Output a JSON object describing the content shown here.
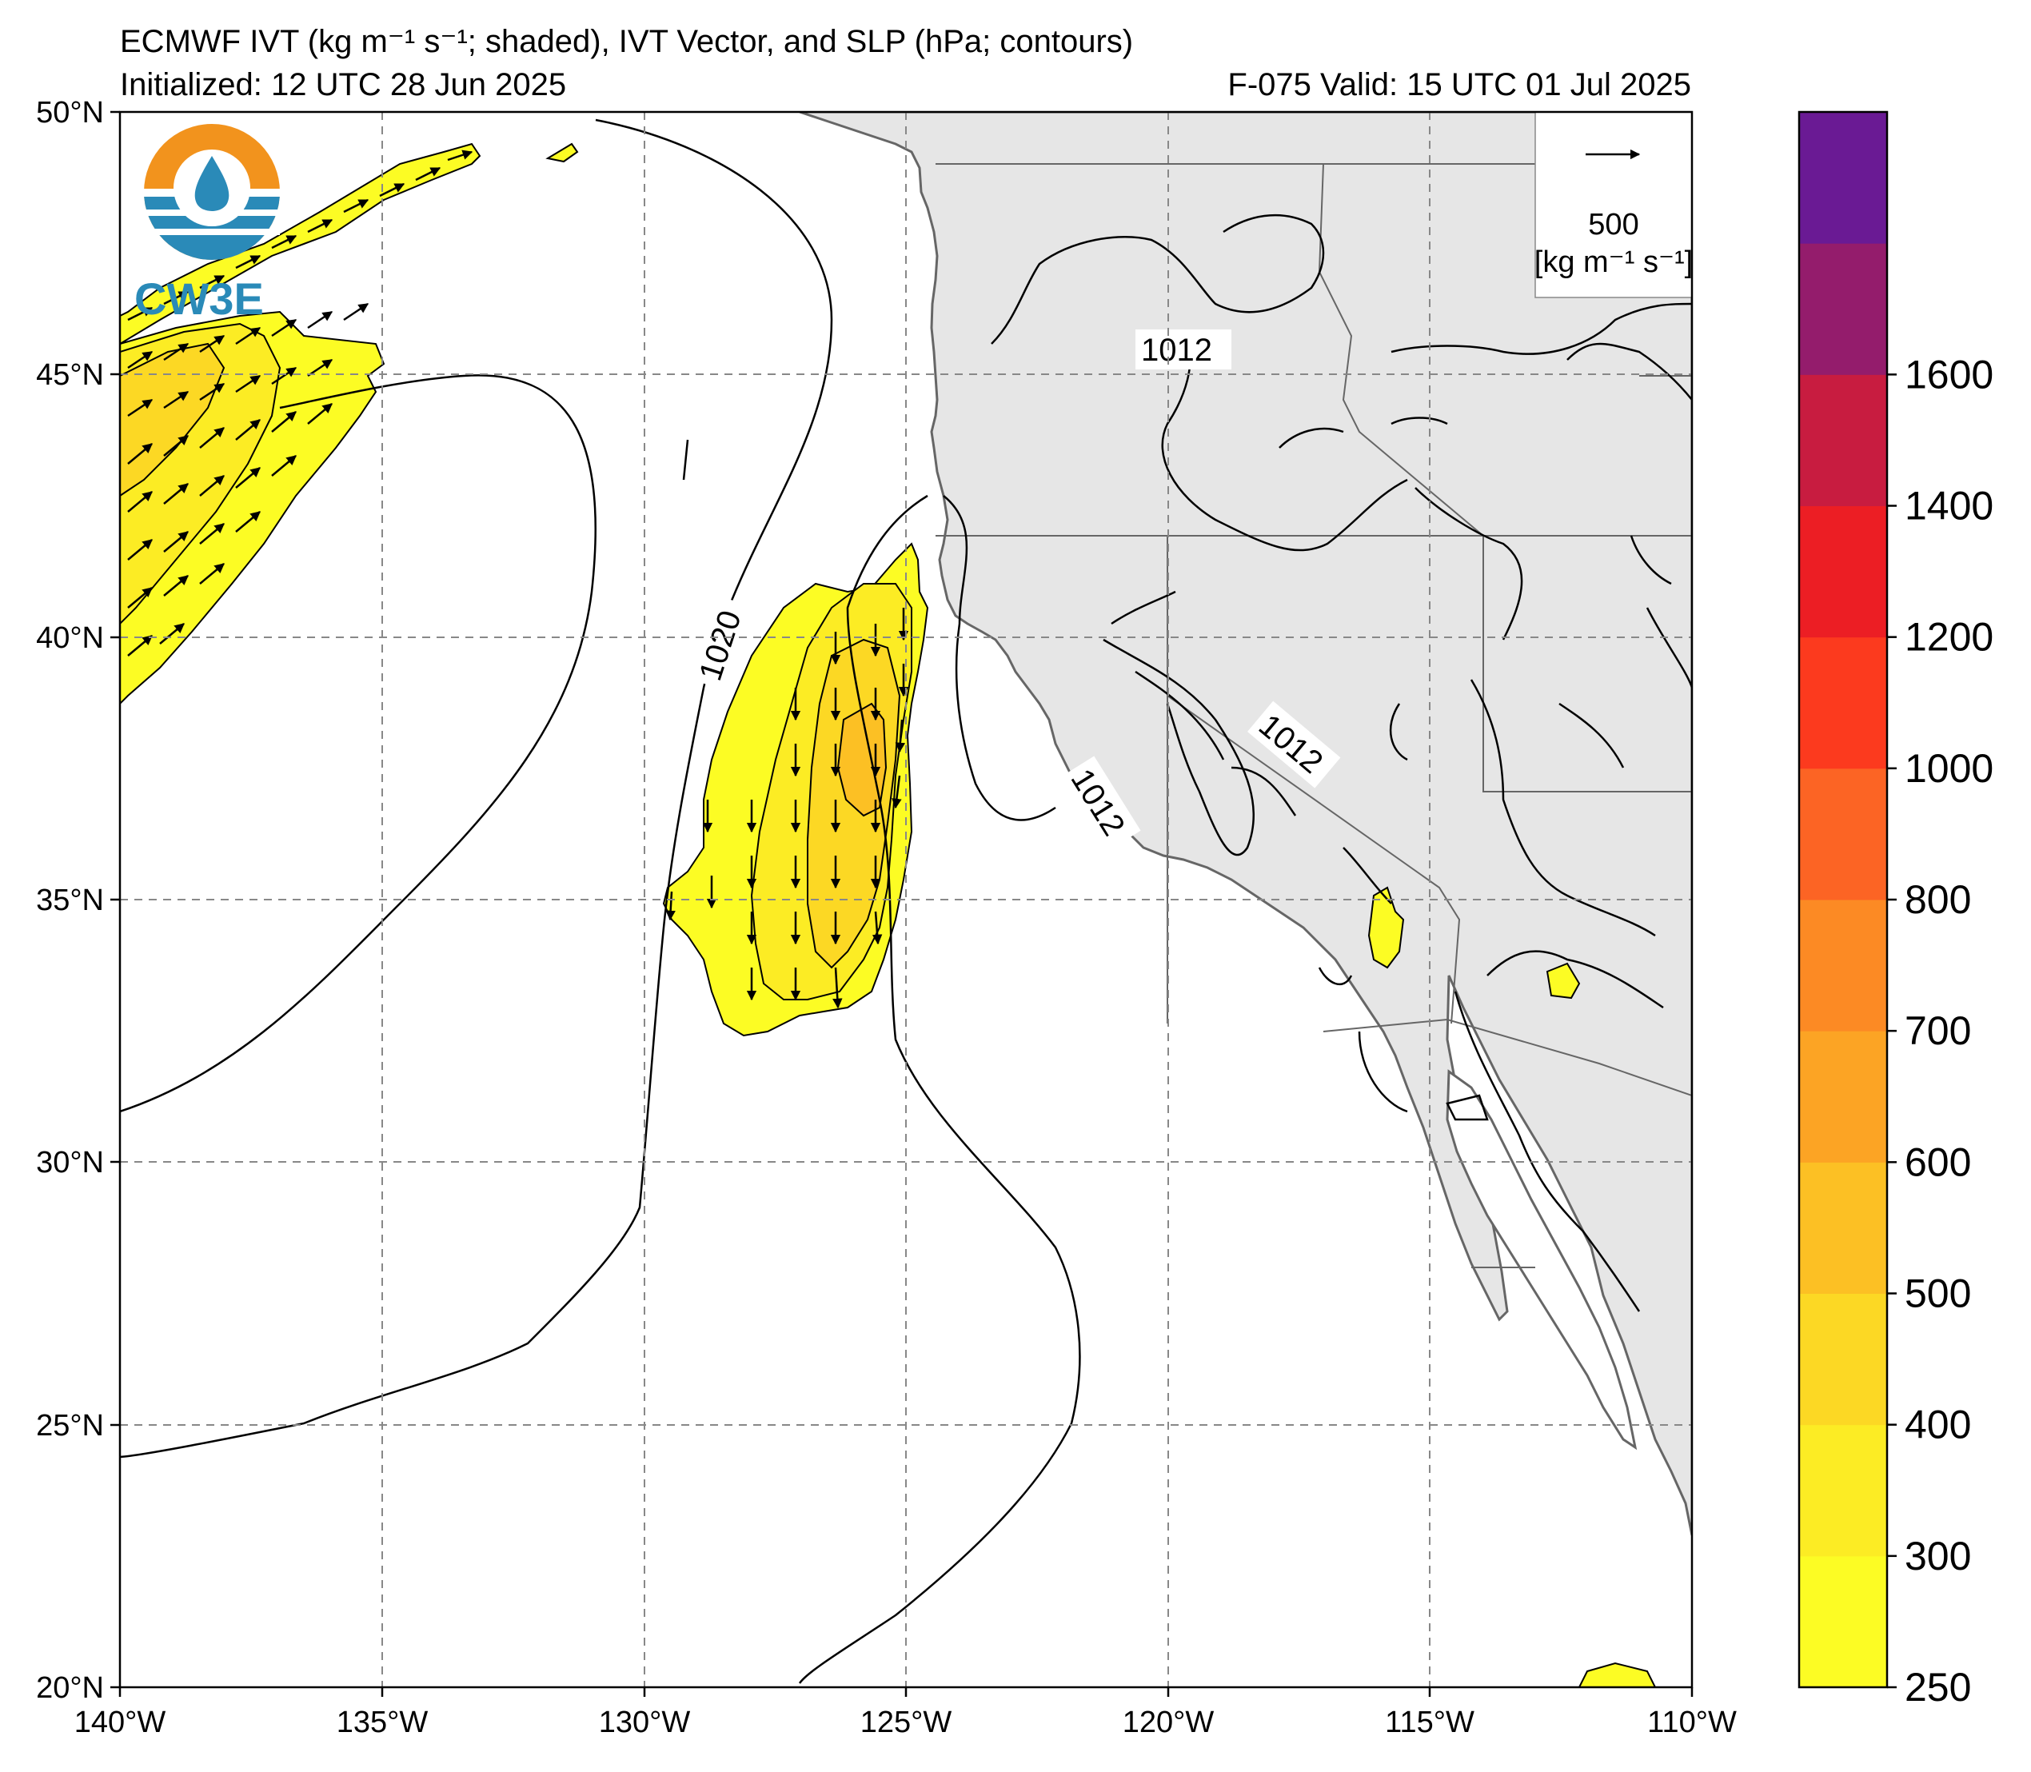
{
  "title": {
    "line1": "ECMWF IVT (kg m⁻¹ s⁻¹; shaded), IVT Vector, and SLP (hPa; contours)",
    "line2_left": "Initialized: 12 UTC 28 Jun 2025",
    "line2_right": "F-075  Valid: 15 UTC 01 Jul 2025"
  },
  "logo": {
    "text": "CW3E"
  },
  "map": {
    "lon_ticks": [
      "140°W",
      "135°W",
      "130°W",
      "125°W",
      "120°W",
      "115°W",
      "110°W"
    ],
    "lat_ticks": [
      "50°N",
      "45°N",
      "40°N",
      "35°N",
      "30°N",
      "25°N",
      "20°N"
    ],
    "contour_labels": [
      "1012",
      "1020",
      "1012",
      "1012"
    ],
    "colors": {
      "land": "#e6e6e6",
      "ocean": "#ffffff",
      "coast": "#666666",
      "contour": "#000000",
      "grid": "#888888"
    }
  },
  "reference_vector": {
    "value": "500",
    "units": "[kg m⁻¹ s⁻¹]"
  },
  "colorbar": {
    "ticks": [
      "250",
      "300",
      "400",
      "500",
      "600",
      "700",
      "800",
      "1000",
      "1200",
      "1400",
      "1600"
    ],
    "colors": [
      "#fcfc24",
      "#fcec24",
      "#fcd824",
      "#fcc024",
      "#fca424",
      "#fc8a24",
      "#fc6424",
      "#fc3a1e",
      "#ec1e24",
      "#c81c40",
      "#941c6c",
      "#6a1a94"
    ]
  }
}
